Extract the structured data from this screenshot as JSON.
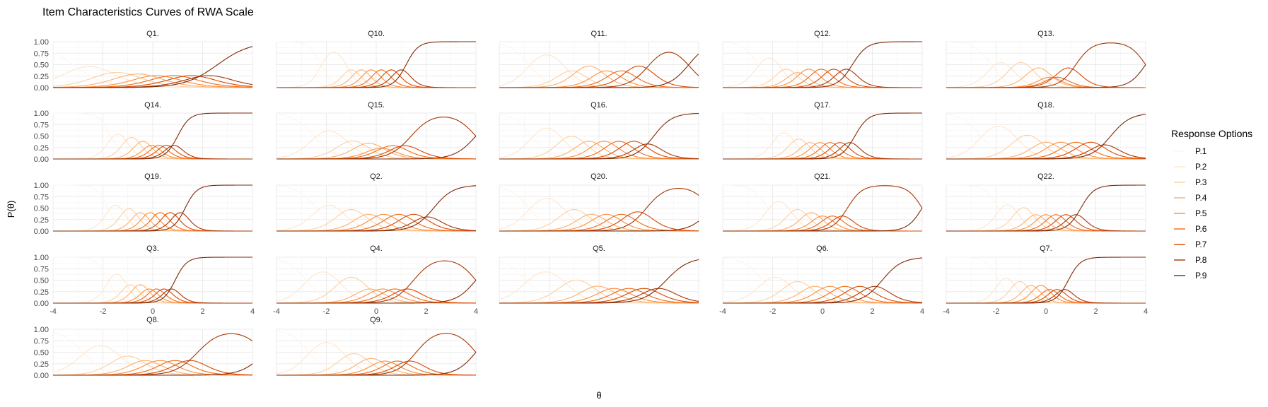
{
  "title": "Item Characteristics Curves of RWA Scale",
  "axis": {
    "xlabel": "θ",
    "ylabel": "P(θ)",
    "x_ticks": [
      "-4",
      "-2",
      "0",
      "2",
      "4"
    ],
    "y_ticks": [
      "0.00",
      "0.25",
      "0.50",
      "0.75",
      "1.00"
    ]
  },
  "legend": {
    "title": "Response Options",
    "items": [
      "P.1",
      "P.2",
      "P.3",
      "P.4",
      "P.5",
      "P.6",
      "P.7",
      "P.8",
      "P.9"
    ]
  },
  "colors": [
    "#fff5eb",
    "#fee6ce",
    "#fdd0a2",
    "#fdae6b",
    "#fd8d3c",
    "#f16913",
    "#d94801",
    "#a63603",
    "#7f2704"
  ],
  "chart_data": {
    "type": "line",
    "title": "Item Characteristics Curves of RWA Scale",
    "xlabel": "θ",
    "ylabel": "P(θ)",
    "xlim": [
      -4,
      4
    ],
    "ylim": [
      0,
      1
    ],
    "grid": true,
    "legend_position": "right",
    "series_names": [
      "P.1",
      "P.2",
      "P.3",
      "P.4",
      "P.5",
      "P.6",
      "P.7",
      "P.8",
      "P.9"
    ],
    "panels": [
      {
        "title": "Q1.",
        "thresholds": [
          -3.2,
          -1.9,
          -1.0,
          -0.2,
          0.5,
          1.2,
          1.9,
          2.6
        ],
        "slope": 0.9
      },
      {
        "title": "Q10.",
        "thresholds": [
          -2.2,
          -1.2,
          -0.8,
          -0.4,
          0.0,
          0.4,
          0.8,
          1.2
        ],
        "slope": 2.4
      },
      {
        "title": "Q11.",
        "thresholds": [
          -2.8,
          -1.4,
          -0.8,
          0.0,
          0.6,
          1.2,
          2.0,
          3.6
        ],
        "slope": 1.5
      },
      {
        "title": "Q12.",
        "thresholds": [
          -2.6,
          -1.7,
          -1.2,
          -0.8,
          -0.3,
          0.2,
          0.7,
          1.2
        ],
        "slope": 2.0
      },
      {
        "title": "Q13.",
        "thresholds": [
          -2.2,
          -1.4,
          -0.6,
          0.0,
          0.3,
          0.6,
          1.2,
          4.0
        ],
        "slope": 1.8
      },
      {
        "title": "Q14.",
        "thresholds": [
          -1.7,
          -1.1,
          -0.6,
          -0.2,
          0.1,
          0.4,
          0.7,
          1.0
        ],
        "slope": 2.4
      },
      {
        "title": "Q15.",
        "thresholds": [
          -2.5,
          -1.3,
          -0.6,
          0.0,
          0.4,
          0.9,
          1.4,
          4.0
        ],
        "slope": 1.4
      },
      {
        "title": "Q16.",
        "thresholds": [
          -2.7,
          -1.5,
          -0.7,
          -0.1,
          0.5,
          1.1,
          1.7,
          2.2
        ],
        "slope": 1.6
      },
      {
        "title": "Q17.",
        "thresholds": [
          -1.9,
          -1.2,
          -0.7,
          -0.3,
          0.1,
          0.5,
          0.9,
          1.3
        ],
        "slope": 2.2
      },
      {
        "title": "Q18.",
        "thresholds": [
          -2.6,
          -1.2,
          -0.3,
          0.3,
          0.9,
          1.5,
          2.1,
          2.6
        ],
        "slope": 1.5
      },
      {
        "title": "Q19.",
        "thresholds": [
          -1.8,
          -1.2,
          -0.7,
          -0.3,
          0.1,
          0.5,
          0.9,
          1.3
        ],
        "slope": 2.5
      },
      {
        "title": "Q2.",
        "thresholds": [
          -2.4,
          -1.4,
          -0.6,
          0.0,
          0.6,
          1.2,
          1.8,
          2.3
        ],
        "slope": 1.5
      },
      {
        "title": "Q20.",
        "thresholds": [
          -2.8,
          -1.4,
          -0.6,
          0.0,
          0.6,
          1.2,
          1.9,
          4.5
        ],
        "slope": 1.5
      },
      {
        "title": "Q21.",
        "thresholds": [
          -2.2,
          -1.3,
          -0.7,
          -0.2,
          0.2,
          0.6,
          1.0,
          4.0
        ],
        "slope": 2.0
      },
      {
        "title": "Q22.",
        "thresholds": [
          -1.9,
          -1.2,
          -0.6,
          -0.2,
          0.2,
          0.6,
          1.0,
          1.4
        ],
        "slope": 2.2
      },
      {
        "title": "Q3.",
        "thresholds": [
          -1.8,
          -1.1,
          -0.7,
          -0.3,
          0.0,
          0.3,
          0.6,
          0.9
        ],
        "slope": 2.5
      },
      {
        "title": "Q4.",
        "thresholds": [
          -2.8,
          -1.5,
          -0.5,
          0.0,
          0.5,
          1.0,
          1.5,
          4.0
        ],
        "slope": 1.5
      },
      {
        "title": "Q5.",
        "thresholds": [
          -2.9,
          -1.4,
          -0.4,
          0.3,
          0.9,
          1.5,
          2.1,
          2.7
        ],
        "slope": 1.3
      },
      {
        "title": "Q6.",
        "thresholds": [
          -2.4,
          -1.4,
          -0.6,
          0.0,
          0.6,
          1.2,
          1.8,
          2.4
        ],
        "slope": 1.5
      },
      {
        "title": "Q7.",
        "thresholds": [
          -1.9,
          -1.3,
          -0.8,
          -0.4,
          0.0,
          0.3,
          0.6,
          0.9
        ],
        "slope": 2.4
      },
      {
        "title": "Q8.",
        "thresholds": [
          -2.8,
          -1.4,
          -0.6,
          0.0,
          0.6,
          1.2,
          1.8,
          4.5
        ],
        "slope": 1.3
      },
      {
        "title": "Q9.",
        "thresholds": [
          -2.7,
          -1.3,
          -0.5,
          0.1,
          0.6,
          1.1,
          1.6,
          4.0
        ],
        "slope": 1.5
      }
    ]
  }
}
